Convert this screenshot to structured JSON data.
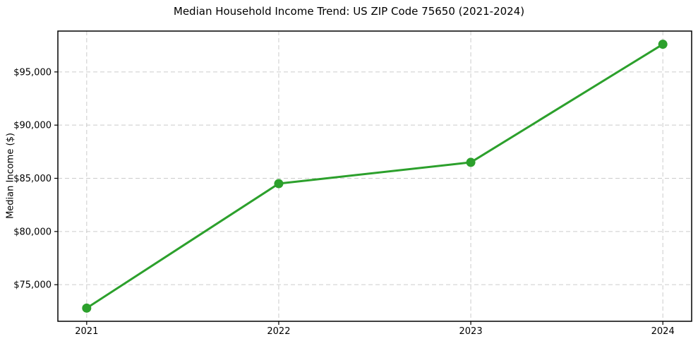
{
  "figure": {
    "title": "Median Household Income Trend: US ZIP Code 75650 (2021-2024)"
  },
  "colors": {
    "line": "#2ca02c",
    "marker": "#2ca02c",
    "grid": "#cccccc",
    "spine": "#000000",
    "text": "#000000",
    "background": "#ffffff"
  },
  "chart_data": {
    "type": "line",
    "title": "Median Household Income Trend: US ZIP Code 75650 (2021-2024)",
    "xlabel": "",
    "ylabel": "Median Income ($)",
    "categories": [
      "2021",
      "2022",
      "2023",
      "2024"
    ],
    "series": [
      {
        "name": "Median Household Income",
        "values": [
          72800,
          84500,
          86500,
          97600
        ]
      }
    ],
    "ylim": [
      71560,
      98840
    ],
    "yticks": [
      {
        "value": 75000,
        "label": "$75,000"
      },
      {
        "value": 80000,
        "label": "$80,000"
      },
      {
        "value": 85000,
        "label": "$85,000"
      },
      {
        "value": 90000,
        "label": "$90,000"
      },
      {
        "value": 95000,
        "label": "$95,000"
      }
    ],
    "grid": true,
    "grid_style": "dashed",
    "legend": "none",
    "marker": "circle",
    "line_width": 3,
    "marker_radius": 6.5
  }
}
